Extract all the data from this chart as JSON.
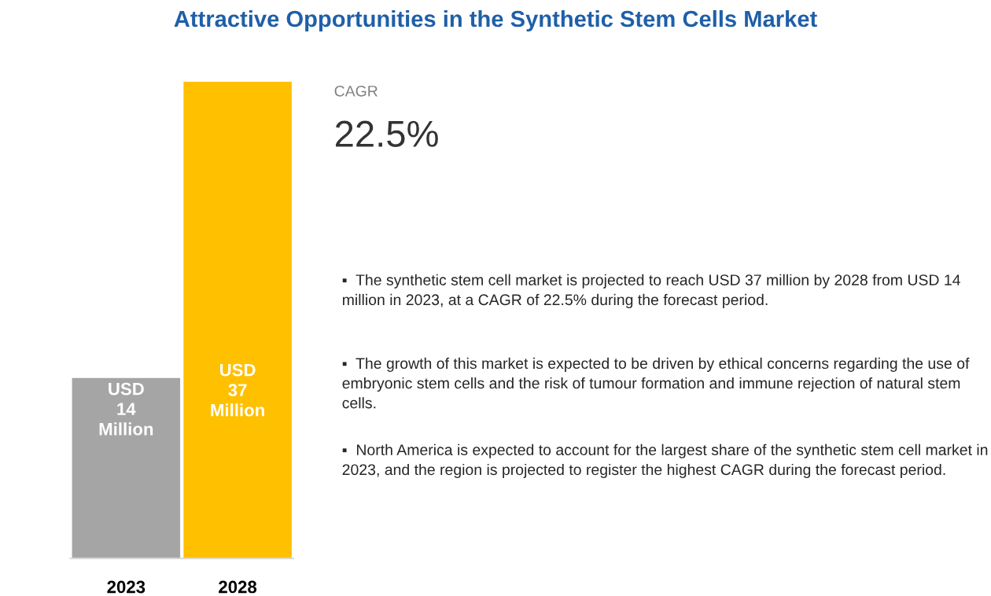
{
  "chart_data": {
    "type": "bar",
    "title": "Attractive Opportunities in the Synthetic Stem Cells Market",
    "categories": [
      "2023",
      "2028"
    ],
    "values": [
      14,
      37
    ],
    "colors": [
      "#a5a5a5",
      "#ffc000"
    ],
    "value_labels": [
      "USD 14 Million",
      "USD 37 Million"
    ],
    "grid": false,
    "legend": false,
    "annotations": [
      "CAGR",
      "22.5%",
      "▪  The synthetic stem cell market is projected to reach USD 37 million by 2028 from USD 14 million in 2023, at a CAGR of 22.5% during the forecast period.",
      "▪  The growth of this market is expected to be driven by ethical concerns regarding the use of embryonic stem cells and the risk of tumour formation and immune rejection of natural stem cells.",
      "▪  North America is expected to account for the largest share of the synthetic stem cell market in 2023, and the region is projected to register the highest CAGR during the forecast period."
    ]
  }
}
